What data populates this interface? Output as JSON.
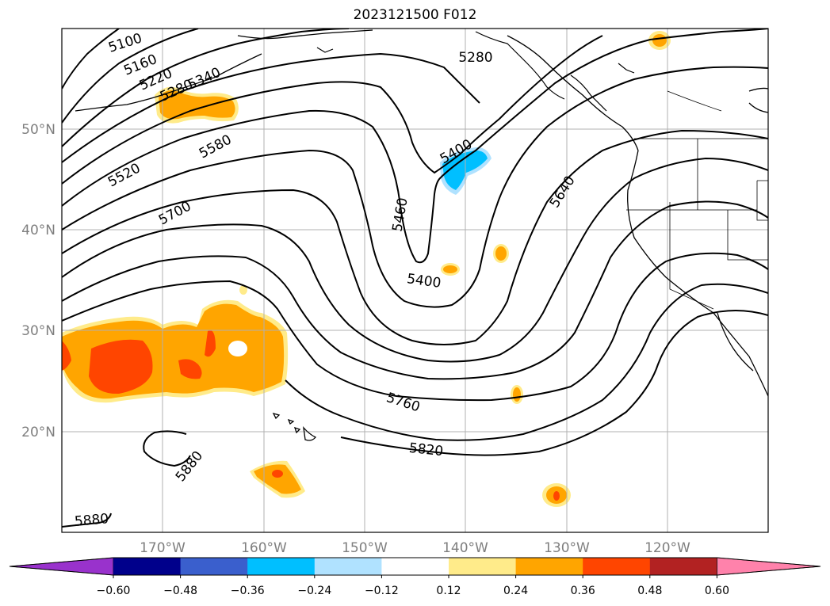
{
  "title": "2023121500 F012",
  "map": {
    "projection": "PlateCarree",
    "lon_range": [
      -180,
      -110
    ],
    "lat_range": [
      10,
      60
    ],
    "gridlines": true,
    "lat_labels": [
      "50°N",
      "40°N",
      "30°N",
      "20°N"
    ],
    "lon_labels": [
      "170°W",
      "160°W",
      "150°W",
      "140°W",
      "130°W",
      "120°W"
    ],
    "contour_labels": [
      "5100",
      "5160",
      "5220",
      "5280",
      "5340",
      "5580",
      "5520",
      "5700",
      "5280",
      "5400",
      "5460",
      "5400",
      "5640",
      "5760",
      "5820",
      "5880",
      "5880"
    ]
  },
  "colorbar": {
    "ticks": [
      "−0.60",
      "−0.48",
      "−0.36",
      "−0.24",
      "−0.12",
      "0.12",
      "0.24",
      "0.36",
      "0.48",
      "0.60"
    ],
    "colors": [
      "#9932cc",
      "#00008b",
      "#3a5fcd",
      "#00bfff",
      "#b0e2ff",
      "#ffffff",
      "#ffeb8a",
      "#ffa500",
      "#ff4500",
      "#b22222",
      "#ff82ab"
    ]
  }
}
